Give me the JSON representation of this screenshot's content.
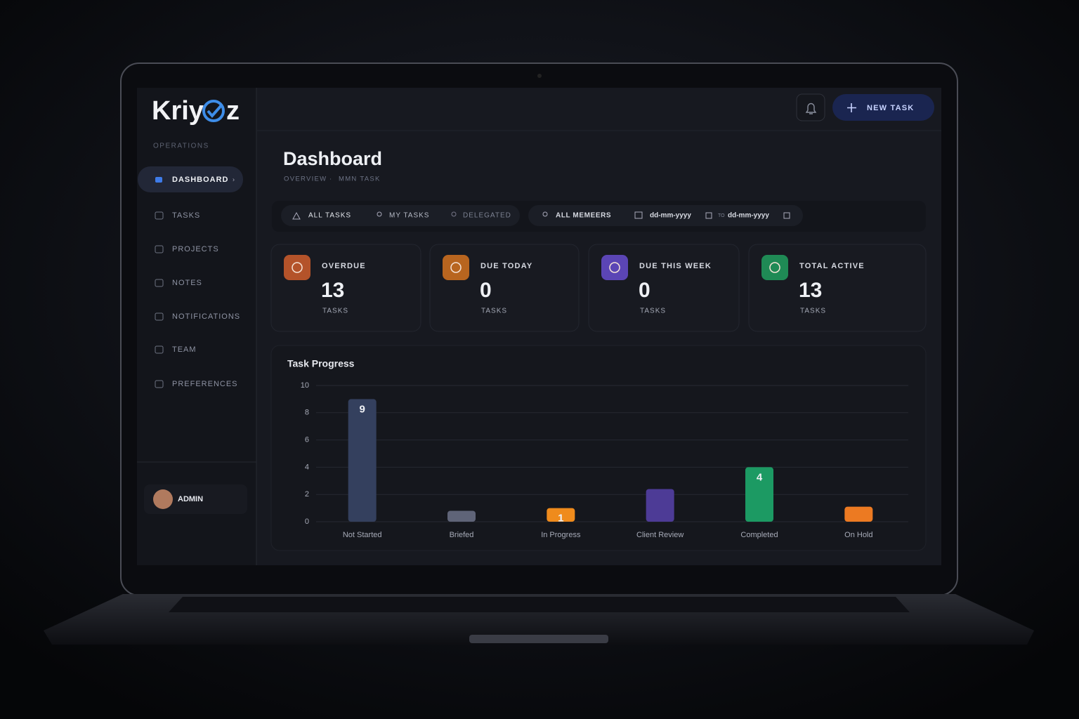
{
  "sidebar": {
    "logo": [
      "Kriy",
      "z"
    ],
    "section": "OPERATIONS",
    "nav": [
      "DASHBOARD",
      "TASKS",
      "PROJECTS",
      "NOTES",
      "NOTIFICATIONS",
      "TEAM",
      "PREFERENCES"
    ],
    "user": "ADMIN"
  },
  "header": {
    "button": "NEW TASK"
  },
  "page": {
    "title": "Dashboard",
    "breadcrumb": [
      "OVERVIEW",
      "MMN TASK"
    ]
  },
  "filters": {
    "tabs": [
      "ALL TASKS",
      "MY TASKS",
      "DELEGATED"
    ],
    "members": "ALL MEMEERS",
    "date_from": "dd-mm-yyyy",
    "to": "TO",
    "date_to": "dd-mm-yyyy"
  },
  "cards": [
    {
      "label": "OVERDUE",
      "value": 13,
      "unit": "TASKS",
      "color": "#b4532a"
    },
    {
      "label": "DUE TODAY",
      "value": 0,
      "unit": "TASKS",
      "color": "#b8651f"
    },
    {
      "label": "DUE THIS WEEK",
      "value": 0,
      "unit": "TASKS",
      "color": "#5b45b5"
    },
    {
      "label": "TOTAL ACTIVE",
      "value": 13,
      "unit": "TASKS",
      "color": "#1f8a55"
    }
  ],
  "chart_data": {
    "type": "bar",
    "title": "Task Progress",
    "categories": [
      "Not Started",
      "Briefed",
      "In Progress",
      "Client Review",
      "Completed",
      "On Hold"
    ],
    "values": [
      9,
      0.8,
      1,
      2.4,
      4,
      1.1
    ],
    "value_labels": [
      "9",
      null,
      "1",
      null,
      "4",
      null
    ],
    "colors": [
      "#34405e",
      "#5f6478",
      "#ef8b1c",
      "#4d3b96",
      "#1c9a63",
      "#ec7a22"
    ],
    "ylim": [
      0,
      10
    ],
    "yticks": [
      0,
      2,
      4,
      6,
      8,
      10
    ],
    "grid": true
  }
}
